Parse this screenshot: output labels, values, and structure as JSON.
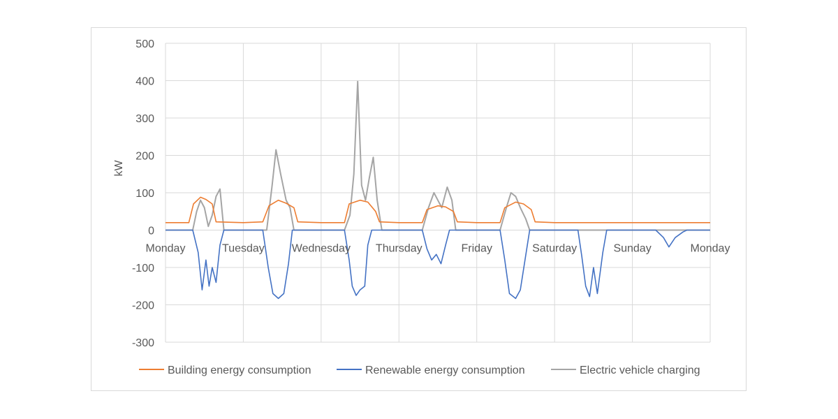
{
  "chart_data": {
    "type": "line",
    "title": "",
    "ylabel": "kW",
    "xlabel": "",
    "ylim": [
      -300,
      500
    ],
    "yticks": [
      500,
      400,
      300,
      200,
      100,
      0,
      -100,
      -200,
      -300
    ],
    "categories": [
      "Monday",
      "Tuesday",
      "Wednesday",
      "Thursday",
      "Friday",
      "Saturday",
      "Sunday",
      "Monday"
    ],
    "xlim": [
      0,
      7
    ],
    "grid": true,
    "legend_position": "bottom",
    "series": [
      {
        "name": "Building energy consumption",
        "color": "#ED7D31",
        "points": [
          [
            0,
            20
          ],
          [
            0.3,
            20
          ],
          [
            0.36,
            70
          ],
          [
            0.45,
            88
          ],
          [
            0.52,
            82
          ],
          [
            0.6,
            70
          ],
          [
            0.65,
            22
          ],
          [
            1.0,
            20
          ],
          [
            1.25,
            22
          ],
          [
            1.33,
            65
          ],
          [
            1.45,
            80
          ],
          [
            1.55,
            72
          ],
          [
            1.65,
            60
          ],
          [
            1.7,
            22
          ],
          [
            2.0,
            20
          ],
          [
            2.3,
            20
          ],
          [
            2.36,
            70
          ],
          [
            2.5,
            80
          ],
          [
            2.6,
            75
          ],
          [
            2.7,
            50
          ],
          [
            2.75,
            22
          ],
          [
            3.0,
            20
          ],
          [
            3.3,
            20
          ],
          [
            3.36,
            55
          ],
          [
            3.5,
            65
          ],
          [
            3.6,
            62
          ],
          [
            3.7,
            50
          ],
          [
            3.75,
            22
          ],
          [
            4.0,
            20
          ],
          [
            4.3,
            20
          ],
          [
            4.36,
            60
          ],
          [
            4.5,
            75
          ],
          [
            4.6,
            70
          ],
          [
            4.7,
            55
          ],
          [
            4.75,
            22
          ],
          [
            5.0,
            20
          ],
          [
            5.5,
            20
          ],
          [
            6.0,
            20
          ],
          [
            6.5,
            20
          ],
          [
            7.0,
            20
          ]
        ]
      },
      {
        "name": "Renewable energy consumption",
        "color": "#4472C4",
        "points": [
          [
            0,
            0
          ],
          [
            0.35,
            0
          ],
          [
            0.42,
            -60
          ],
          [
            0.47,
            -160
          ],
          [
            0.52,
            -80
          ],
          [
            0.56,
            -150
          ],
          [
            0.6,
            -100
          ],
          [
            0.65,
            -140
          ],
          [
            0.7,
            -40
          ],
          [
            0.75,
            0
          ],
          [
            1.25,
            0
          ],
          [
            1.32,
            -100
          ],
          [
            1.38,
            -170
          ],
          [
            1.45,
            -183
          ],
          [
            1.52,
            -170
          ],
          [
            1.58,
            -90
          ],
          [
            1.63,
            0
          ],
          [
            2.3,
            0
          ],
          [
            2.36,
            -80
          ],
          [
            2.4,
            -150
          ],
          [
            2.45,
            -175
          ],
          [
            2.5,
            -160
          ],
          [
            2.56,
            -150
          ],
          [
            2.6,
            -40
          ],
          [
            2.65,
            0
          ],
          [
            3.3,
            0
          ],
          [
            3.36,
            -50
          ],
          [
            3.42,
            -80
          ],
          [
            3.48,
            -65
          ],
          [
            3.54,
            -90
          ],
          [
            3.6,
            -40
          ],
          [
            3.65,
            0
          ],
          [
            4.3,
            0
          ],
          [
            4.36,
            -80
          ],
          [
            4.42,
            -170
          ],
          [
            4.5,
            -183
          ],
          [
            4.56,
            -160
          ],
          [
            4.62,
            -80
          ],
          [
            4.68,
            0
          ],
          [
            5.3,
            0
          ],
          [
            5.35,
            -70
          ],
          [
            5.4,
            -150
          ],
          [
            5.45,
            -178
          ],
          [
            5.5,
            -100
          ],
          [
            5.55,
            -170
          ],
          [
            5.62,
            -60
          ],
          [
            5.67,
            0
          ],
          [
            6.3,
            0
          ],
          [
            6.4,
            -20
          ],
          [
            6.47,
            -45
          ],
          [
            6.55,
            -20
          ],
          [
            6.65,
            -5
          ],
          [
            6.7,
            0
          ],
          [
            7.0,
            0
          ]
        ]
      },
      {
        "name": "Electric vehicle charging",
        "color": "#A5A5A5",
        "points": [
          [
            0,
            0
          ],
          [
            0.35,
            0
          ],
          [
            0.4,
            50
          ],
          [
            0.45,
            80
          ],
          [
            0.5,
            60
          ],
          [
            0.55,
            10
          ],
          [
            0.6,
            40
          ],
          [
            0.65,
            90
          ],
          [
            0.7,
            110
          ],
          [
            0.75,
            0
          ],
          [
            1.3,
            0
          ],
          [
            1.37,
            120
          ],
          [
            1.42,
            215
          ],
          [
            1.48,
            150
          ],
          [
            1.55,
            80
          ],
          [
            1.6,
            60
          ],
          [
            1.65,
            0
          ],
          [
            2.3,
            0
          ],
          [
            2.37,
            40
          ],
          [
            2.42,
            150
          ],
          [
            2.47,
            398
          ],
          [
            2.52,
            120
          ],
          [
            2.57,
            80
          ],
          [
            2.62,
            140
          ],
          [
            2.67,
            195
          ],
          [
            2.72,
            80
          ],
          [
            2.78,
            0
          ],
          [
            3.3,
            0
          ],
          [
            3.38,
            60
          ],
          [
            3.45,
            100
          ],
          [
            3.5,
            80
          ],
          [
            3.55,
            60
          ],
          [
            3.62,
            115
          ],
          [
            3.68,
            80
          ],
          [
            3.73,
            0
          ],
          [
            4.3,
            0
          ],
          [
            4.38,
            60
          ],
          [
            4.44,
            100
          ],
          [
            4.5,
            90
          ],
          [
            4.56,
            60
          ],
          [
            4.63,
            30
          ],
          [
            4.68,
            0
          ],
          [
            7.0,
            0
          ]
        ]
      }
    ]
  }
}
